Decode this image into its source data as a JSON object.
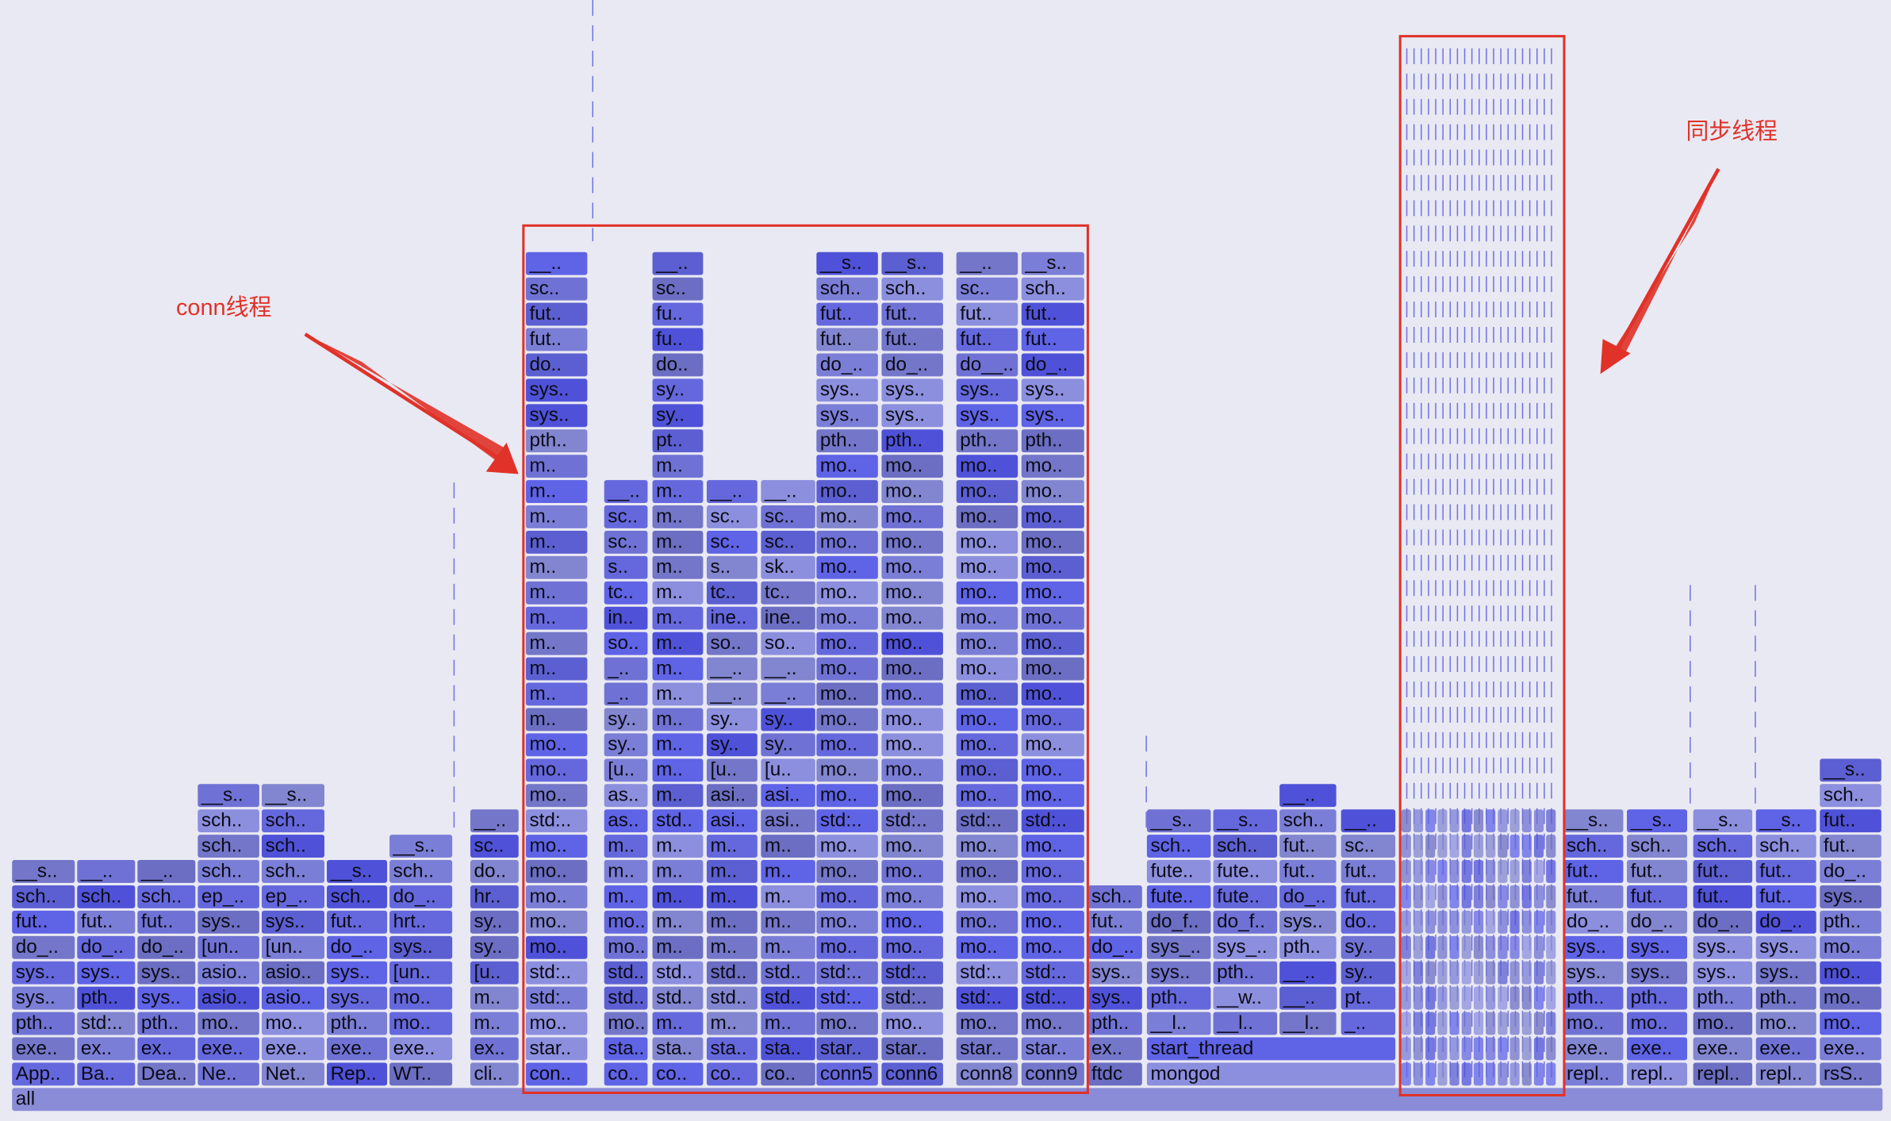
{
  "root_label": "all",
  "annotations": {
    "conn_label": "conn线程",
    "sync_label": "同步线程"
  },
  "colors": {
    "background": "#e9e9f3",
    "annotation": "#e03228",
    "palette": [
      "#5f63e6",
      "#6f72d4",
      "#7b7ed6",
      "#8c8ede",
      "#6568dd",
      "#7376c9",
      "#4f52d8",
      "#8285cf",
      "#5c5fd1",
      "#6b6ec2"
    ]
  },
  "columns": [
    {
      "name": "App..",
      "frames": [
        "App..",
        "exe..",
        "pth..",
        "sys..",
        "sys..",
        "do_..",
        "fut..",
        "sch..",
        "__s.."
      ]
    },
    {
      "name": "Ba..",
      "frames": [
        "Ba..",
        "ex..",
        "std:..",
        "pth..",
        "sys..",
        "do_..",
        "fut..",
        "sch..",
        "__.."
      ]
    },
    {
      "name": "Dea..",
      "frames": [
        "Dea..",
        "ex..",
        "pth..",
        "sys..",
        "sys..",
        "do_..",
        "fut..",
        "sch..",
        "__.."
      ]
    },
    {
      "name": "Ne..",
      "frames": [
        "Ne..",
        "exe..",
        "mo..",
        "asio..",
        "asio..",
        "[un..",
        "sys..",
        "ep_..",
        "sch..",
        "sch..",
        "sch..",
        "__s.."
      ]
    },
    {
      "name": "Net..",
      "frames": [
        "Net..",
        "exe..",
        "mo..",
        "asio..",
        "asio..",
        "[un..",
        "sys..",
        "ep_..",
        "sch..",
        "sch..",
        "sch..",
        "__s.."
      ]
    },
    {
      "name": "Rep..",
      "frames": [
        "Rep..",
        "exe..",
        "pth..",
        "sys..",
        "sys..",
        "do_..",
        "fut..",
        "sch..",
        "__s.."
      ]
    },
    {
      "name": "WT..",
      "frames": [
        "WT..",
        "exe..",
        "mo..",
        "mo..",
        "[un..",
        "sys..",
        "hrt..",
        "do_..",
        "sch..",
        "__s.."
      ]
    },
    {
      "name": "cli..",
      "frames": [
        "cli..",
        "ex..",
        "m..",
        "m..",
        "[u..",
        "sy..",
        "sy..",
        "hr..",
        "do..",
        "sc..",
        "__.."
      ]
    },
    {
      "name": "con..",
      "frames": [
        "con..",
        "star..",
        "mo..",
        "std:..",
        "std:..",
        "mo..",
        "mo..",
        "mo..",
        "mo..",
        "mo..",
        "std:..",
        "mo..",
        "mo..",
        "mo..",
        "m..",
        "m..",
        "m..",
        "m..",
        "m..",
        "m..",
        "m..",
        "m..",
        "m..",
        "m..",
        "m..",
        "pth..",
        "sys..",
        "sys..",
        "do..",
        "fut..",
        "fut..",
        "sc..",
        "__.."
      ]
    },
    {
      "name": "co..",
      "frames": [
        "co..",
        "sta..",
        "mo..",
        "std..",
        "std..",
        "mo..",
        "mo..",
        "m..",
        "m..",
        "m..",
        "as..",
        "as..",
        "[u..",
        "sy..",
        "sy..",
        "_..",
        "_..",
        "so..",
        "in..",
        "tc..",
        "s..",
        "sc..",
        "sc..",
        "__.."
      ]
    },
    {
      "name": "co..",
      "frames": [
        "co..",
        "sta..",
        "m..",
        "std..",
        "std..",
        "m..",
        "m..",
        "m..",
        "m..",
        "m..",
        "std..",
        "m..",
        "m..",
        "m..",
        "m..",
        "m..",
        "m..",
        "m..",
        "m..",
        "m..",
        "m..",
        "m..",
        "m..",
        "m..",
        "m..",
        "pt..",
        "sy..",
        "sy..",
        "do..",
        "fu..",
        "fu..",
        "sc..",
        "__.."
      ]
    },
    {
      "name": "co..",
      "frames": [
        "co..",
        "sta..",
        "m..",
        "std..",
        "std..",
        "m..",
        "m..",
        "m..",
        "m..",
        "m..",
        "asi..",
        "asi..",
        "[u..",
        "sy..",
        "sy..",
        "__..",
        "__..",
        "so..",
        "ine..",
        "tc..",
        "s..",
        "sc..",
        "sc..",
        "__.."
      ]
    },
    {
      "name": "co..",
      "frames": [
        "co..",
        "sta..",
        "m..",
        "std..",
        "std..",
        "m..",
        "m..",
        "m..",
        "m..",
        "m..",
        "asi..",
        "asi..",
        "[u..",
        "sy..",
        "sy..",
        "__..",
        "__..",
        "so..",
        "ine..",
        "tc..",
        "sk..",
        "sc..",
        "sc..",
        "__.."
      ]
    },
    {
      "name": "conn5",
      "frames": [
        "conn5",
        "star..",
        "mo..",
        "std:..",
        "std:..",
        "mo..",
        "mo..",
        "mo..",
        "mo..",
        "mo..",
        "std:..",
        "mo..",
        "mo..",
        "mo..",
        "mo..",
        "mo..",
        "mo..",
        "mo..",
        "mo..",
        "mo..",
        "mo..",
        "mo..",
        "mo..",
        "mo..",
        "mo..",
        "pth..",
        "sys..",
        "sys..",
        "do_..",
        "fut..",
        "fut..",
        "sch..",
        "__s.."
      ]
    },
    {
      "name": "conn6",
      "frames": [
        "conn6",
        "star..",
        "mo..",
        "std:..",
        "std:..",
        "mo..",
        "mo..",
        "mo..",
        "mo..",
        "mo..",
        "std:..",
        "mo..",
        "mo..",
        "mo..",
        "mo..",
        "mo..",
        "mo..",
        "mo..",
        "mo..",
        "mo..",
        "mo..",
        "mo..",
        "mo..",
        "mo..",
        "mo..",
        "pth..",
        "sys..",
        "sys..",
        "do_..",
        "fut..",
        "fut..",
        "sch..",
        "__s.."
      ]
    },
    {
      "name": "conn8",
      "frames": [
        "conn8",
        "star..",
        "mo..",
        "std:..",
        "std:..",
        "mo..",
        "mo..",
        "mo..",
        "mo..",
        "mo..",
        "std:..",
        "mo..",
        "mo..",
        "mo..",
        "mo..",
        "mo..",
        "mo..",
        "mo..",
        "mo..",
        "mo..",
        "mo..",
        "mo..",
        "mo..",
        "mo..",
        "mo..",
        "pth..",
        "sys..",
        "sys..",
        "do__..",
        "fut..",
        "fut..",
        "sc..",
        "__.."
      ]
    },
    {
      "name": "conn9",
      "frames": [
        "conn9",
        "star..",
        "mo..",
        "std:..",
        "std:..",
        "mo..",
        "mo..",
        "mo..",
        "mo..",
        "mo..",
        "std:..",
        "mo..",
        "mo..",
        "mo..",
        "mo..",
        "mo..",
        "mo..",
        "mo..",
        "mo..",
        "mo..",
        "mo..",
        "mo..",
        "mo..",
        "mo..",
        "mo..",
        "pth..",
        "sys..",
        "sys..",
        "do_..",
        "fut..",
        "fut..",
        "sch..",
        "__s.."
      ]
    },
    {
      "name": "ftdc",
      "frames": [
        "ftdc",
        "ex..",
        "pth..",
        "sys..",
        "sys..",
        "do_..",
        "fut..",
        "sch.."
      ]
    },
    {
      "name": "mongod",
      "frames": [
        "mongod",
        "start_thread",
        "__l..",
        "pth..",
        "sys..",
        "sys_..",
        "do_f..",
        "fute..",
        "fute..",
        "sch..",
        "__s.."
      ]
    },
    {
      "name": "",
      "frames": [
        "",
        "",
        "__l..",
        "__w..",
        "pth..",
        "sys_..",
        "do_f..",
        "fute..",
        "fute..",
        "sch..",
        "__s.."
      ]
    },
    {
      "name": "",
      "frames": [
        "",
        "",
        "__l..",
        "__..",
        "__..",
        "pth..",
        "sys..",
        "do_..",
        "fut..",
        "fut..",
        "sch..",
        "__.."
      ]
    },
    {
      "name": "",
      "frames": [
        "",
        "",
        "_..",
        "pt..",
        "sy..",
        "sy..",
        "do..",
        "fut..",
        "fut..",
        "sc..",
        "__.."
      ]
    },
    {
      "name": "repl..",
      "frames": [
        "repl..",
        "exe..",
        "mo..",
        "pth..",
        "sys..",
        "sys..",
        "do_..",
        "fut..",
        "fut..",
        "sch..",
        "__s.."
      ]
    },
    {
      "name": "repl..",
      "frames": [
        "repl..",
        "exe..",
        "mo..",
        "pth..",
        "sys..",
        "sys..",
        "do_..",
        "fut..",
        "fut..",
        "sch..",
        "__s.."
      ]
    },
    {
      "name": "repl..",
      "frames": [
        "repl..",
        "exe..",
        "mo..",
        "pth..",
        "sys..",
        "sys..",
        "do_..",
        "fut..",
        "fut..",
        "sch..",
        "__s.."
      ]
    },
    {
      "name": "repl..",
      "frames": [
        "repl..",
        "exe..",
        "mo..",
        "pth..",
        "sys..",
        "sys..",
        "do_..",
        "fut..",
        "fut..",
        "sch..",
        "__s.."
      ]
    },
    {
      "name": "rsS..",
      "frames": [
        "rsS..",
        "exe..",
        "mo..",
        "mo..",
        "mo..",
        "mo..",
        "pth..",
        "sys..",
        "do_..",
        "fut..",
        "fut..",
        "sch..",
        "__s.."
      ]
    }
  ]
}
